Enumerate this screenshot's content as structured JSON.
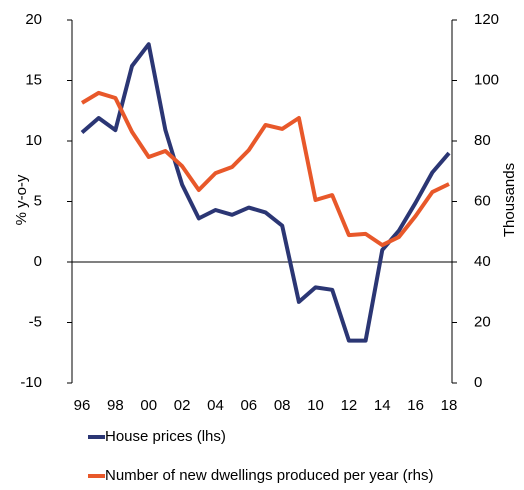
{
  "chart_data": {
    "type": "line",
    "categories": [
      "96",
      null,
      "98",
      null,
      "00",
      null,
      "02",
      null,
      "04",
      null,
      "06",
      null,
      "08",
      null,
      "10",
      null,
      "12",
      null,
      "14",
      null,
      "16",
      null,
      "18"
    ],
    "ylabel": "% y-o-y",
    "y2label": "Thousands",
    "ylim": [
      -10,
      20
    ],
    "yticks": [
      -10,
      -5,
      0,
      5,
      10,
      15,
      20
    ],
    "y2lim": [
      0,
      120
    ],
    "y2ticks": [
      0,
      20,
      40,
      60,
      80,
      100,
      120
    ],
    "series": [
      {
        "name": "House prices (lhs)",
        "color": "#2b3674",
        "values": [
          10.7,
          11.9,
          10.9,
          16.2,
          18.0,
          10.9,
          6.4,
          3.6,
          4.3,
          3.9,
          4.5,
          4.1,
          3.0,
          -3.3,
          -2.1,
          -2.3,
          -6.5,
          -6.5,
          1.0,
          2.6,
          4.9,
          7.4,
          9.0
        ]
      },
      {
        "name": "Number of new dwellings produced per year (rhs)",
        "color": "#e8582a",
        "axis": "y2",
        "values": [
          92.6,
          95.9,
          94.2,
          83.0,
          74.7,
          76.7,
          71.7,
          63.8,
          69.4,
          71.4,
          77.0,
          85.3,
          84.0,
          87.6,
          60.5,
          62.1,
          48.9,
          49.3,
          45.6,
          48.3,
          55.2,
          63.1,
          65.8
        ]
      }
    ],
    "legend": "bottom"
  }
}
